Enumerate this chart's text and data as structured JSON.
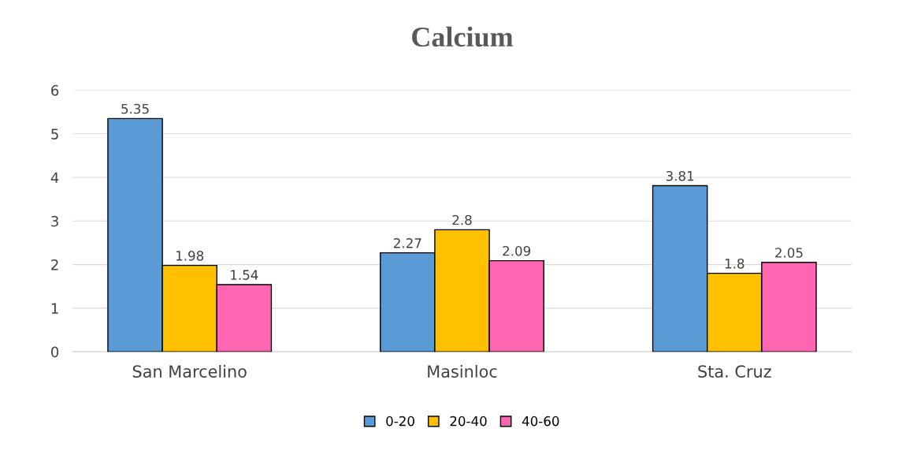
{
  "chart_data": {
    "type": "bar",
    "title": "Calcium",
    "categories": [
      "San Marcelino",
      "Masinloc",
      "Sta. Cruz"
    ],
    "series": [
      {
        "name": "0-20",
        "color": "#5b9bd5",
        "values": [
          5.35,
          2.27,
          3.81
        ]
      },
      {
        "name": "20-40",
        "color": "#ffc000",
        "values": [
          1.98,
          2.8,
          1.8
        ]
      },
      {
        "name": "40-60",
        "color": "#ff66b2",
        "values": [
          1.54,
          2.09,
          2.05
        ]
      }
    ],
    "ylim": [
      0,
      6
    ],
    "yticks": [
      0,
      1,
      2,
      3,
      4,
      5,
      6
    ],
    "grid": "y",
    "legend": "bottom",
    "data_labels": true
  }
}
